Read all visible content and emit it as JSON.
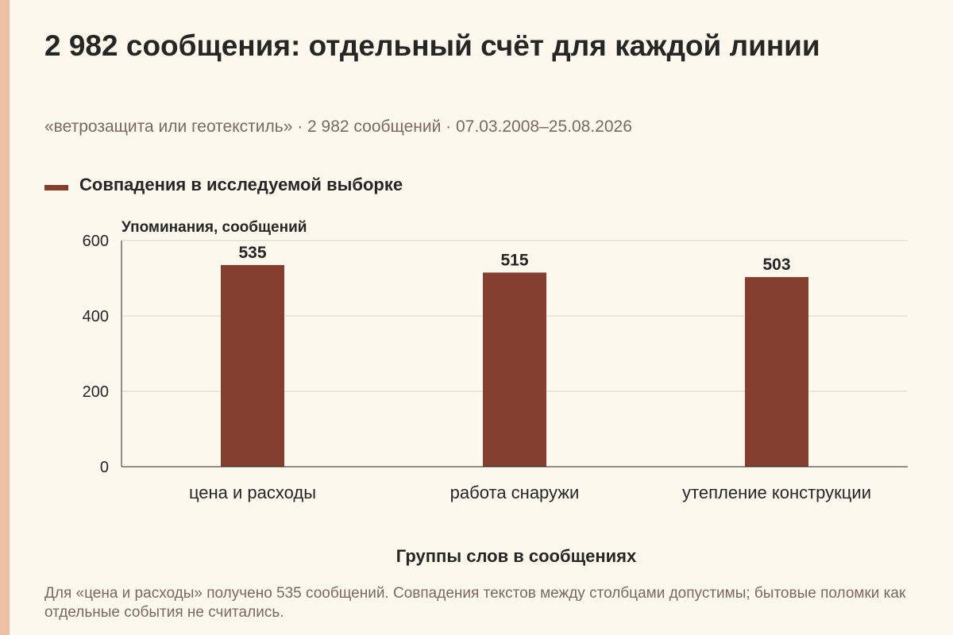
{
  "title": "2 982 сообщения: отдельный счёт для каждой линии",
  "subtitle": "«ветрозащита или геотекстиль» · 2 982 сообщений · 07.03.2008–25.08.2026",
  "footnote": "Для «цена и расходы» получено 535 сообщений. Совпадения текстов между столбцами допустимы; бытовые поломки как отдельные события не считались.",
  "colors": {
    "bar": "#833e2e",
    "accent_stripe": "#efbfa6",
    "grid": "#d9d4cb",
    "axis": "#262625"
  },
  "chart_data": {
    "type": "bar",
    "categories": [
      "цена и расходы",
      "работа снаружи",
      "утепление конструкции"
    ],
    "series": [
      {
        "name": "Совпадения в исследуемой выборке",
        "values": [
          535,
          515,
          503
        ]
      }
    ],
    "data_labels": [
      "535",
      "515",
      "503"
    ],
    "ylabel": "Упоминания, сообщений",
    "xlabel": "Группы слов в сообщениях",
    "ylim": [
      0,
      600
    ],
    "yticks": [
      0,
      200,
      400,
      600
    ],
    "ytick_labels": [
      "0",
      "200",
      "400",
      "600"
    ],
    "grid": true,
    "legend_position": "top-left"
  }
}
